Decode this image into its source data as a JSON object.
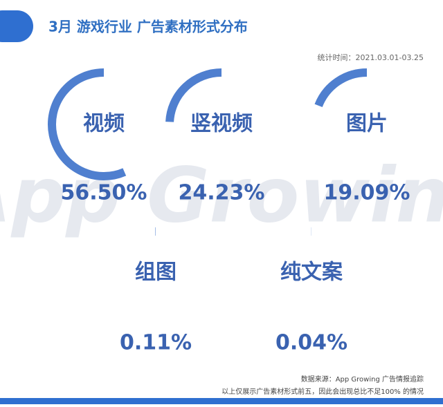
{
  "chart_data": {
    "type": "radial",
    "title": "3月 游戏行业 广告素材形式分布",
    "subtitle": "统计时间：2021.03.01-03.25",
    "watermark": "App Growing",
    "categories": [
      "视频",
      "竖视频",
      "图片",
      "组图",
      "纯文案"
    ],
    "values": [
      56.5,
      24.23,
      19.09,
      0.11,
      0.04
    ],
    "value_labels": [
      "56.50%",
      "24.23%",
      "19.09%",
      "0.11%",
      "0.04%"
    ],
    "color": "#4f7fcf",
    "source": "数据来源：App Growing 广告情报追踪",
    "note": "以上仅展示广告素材形式前五，因此会出现总比不足100% 的情况"
  }
}
